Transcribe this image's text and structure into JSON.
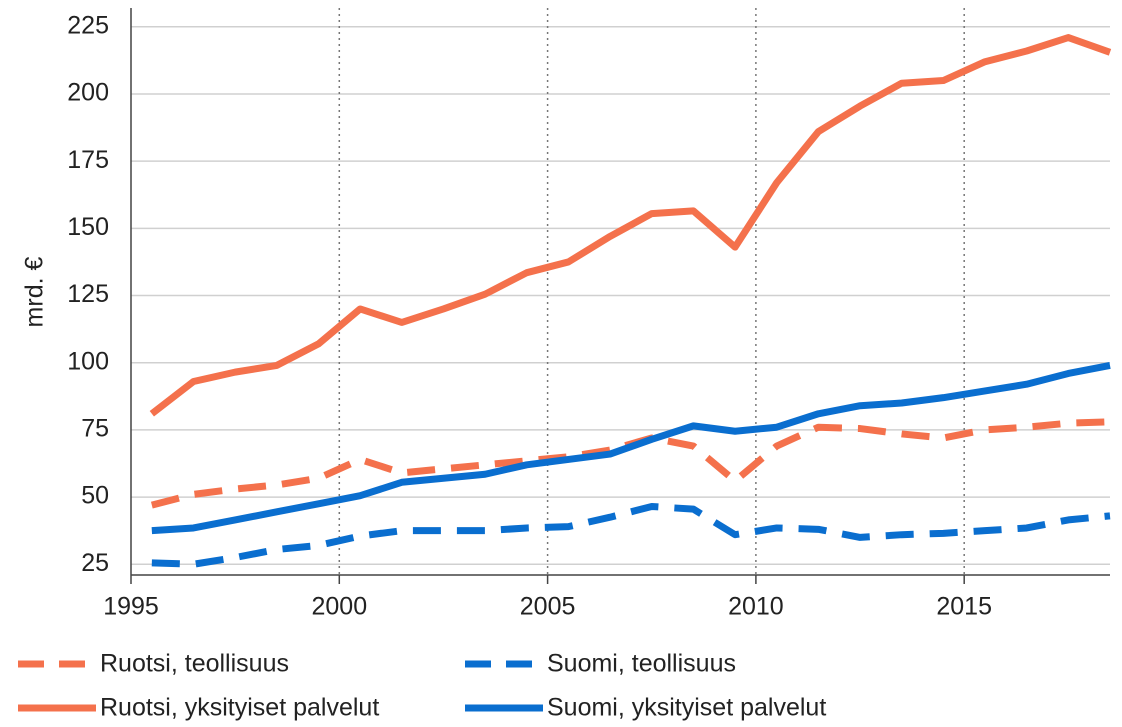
{
  "chart_data": {
    "type": "line",
    "y_label": "mrd. €",
    "x": [
      1995.5,
      1996.5,
      1997.5,
      1998.5,
      1999.5,
      2000.5,
      2001.5,
      2002.5,
      2003.5,
      2004.5,
      2005.5,
      2006.5,
      2007.5,
      2008.5,
      2009.5,
      2010.5,
      2011.5,
      2012.5,
      2013.5,
      2014.5,
      2015.5,
      2016.5,
      2017.5,
      2018.5
    ],
    "xlim": [
      1995,
      2018.5
    ],
    "xticks": [
      1995,
      2000,
      2005,
      2010,
      2015
    ],
    "ylim": [
      21,
      232
    ],
    "yticks": [
      25,
      50,
      75,
      100,
      125,
      150,
      175,
      200,
      225
    ],
    "grid": true,
    "series": [
      {
        "name": "Ruotsi, teollisuus",
        "color": "#f4714c",
        "linestyle": "dashed",
        "values": [
          47,
          51,
          53,
          54.5,
          57,
          64,
          59,
          60.5,
          62,
          63.5,
          65,
          67.5,
          72,
          69,
          56,
          69,
          76,
          75.5,
          73.5,
          72,
          75,
          76,
          77.5,
          78
        ]
      },
      {
        "name": "Suomi, teollisuus",
        "color": "#0a6ecf",
        "linestyle": "dashed",
        "values": [
          25.5,
          25,
          27.5,
          30.5,
          32,
          35.5,
          37.5,
          37.5,
          37.5,
          38.5,
          39,
          42.5,
          46.5,
          45.5,
          36,
          38.5,
          38,
          35,
          36,
          36.5,
          37.5,
          38.5,
          41.5,
          43
        ]
      },
      {
        "name": "Ruotsi, yksityiset palvelut",
        "color": "#f4714c",
        "linestyle": "solid",
        "values": [
          81,
          93,
          96.5,
          99,
          107,
          120,
          115,
          120,
          125.5,
          133.5,
          137.5,
          147,
          155.5,
          156.5,
          143,
          167,
          186,
          195.5,
          204,
          205,
          212,
          216,
          221,
          215.5
        ]
      },
      {
        "name": "Suomi, yksityiset palvelut",
        "color": "#0a6ecf",
        "linestyle": "solid",
        "values": [
          37.5,
          38.5,
          41.5,
          44.5,
          47.5,
          50.5,
          55.5,
          57,
          58.5,
          62,
          64,
          66,
          71.5,
          76.5,
          74.5,
          76,
          81,
          84,
          85,
          87,
          89.5,
          92,
          96,
          99
        ]
      }
    ]
  }
}
